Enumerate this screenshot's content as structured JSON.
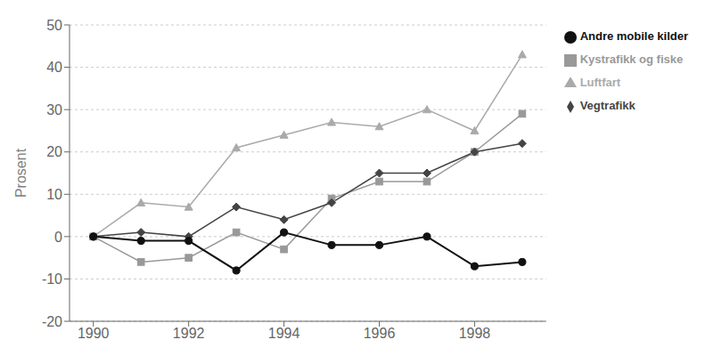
{
  "chart_data": {
    "type": "line",
    "x": [
      1990,
      1991,
      1992,
      1993,
      1994,
      1995,
      1996,
      1997,
      1998,
      1999
    ],
    "series": [
      {
        "name": "Luftfart",
        "color": "#aaaaaa",
        "marker": "triangle",
        "values": [
          0,
          8,
          7,
          21,
          24,
          27,
          26,
          30,
          25,
          43
        ]
      },
      {
        "name": "Kystrafikk og fiske",
        "color": "#999999",
        "marker": "square",
        "values": [
          0,
          -6,
          -5,
          1,
          -3,
          9,
          13,
          13,
          20,
          29
        ]
      },
      {
        "name": "Vegtrafikk",
        "color": "#444444",
        "marker": "diamond",
        "values": [
          0,
          1,
          0,
          7,
          4,
          8,
          15,
          15,
          20,
          22
        ]
      },
      {
        "name": "Andre mobile kilder",
        "color": "#111111",
        "marker": "circle",
        "values": [
          0,
          -1,
          -1,
          -8,
          1,
          -2,
          -2,
          0,
          -7,
          -6
        ]
      }
    ],
    "ylabel": "Prosent",
    "xlim": [
      1989.5,
      1999.5
    ],
    "xticks": [
      1990,
      1992,
      1994,
      1996,
      1998
    ],
    "ylim": [
      -20,
      50
    ],
    "yticks": [
      -20,
      -10,
      0,
      10,
      20,
      30,
      40,
      50
    ],
    "grid": "y",
    "legend": "right"
  }
}
